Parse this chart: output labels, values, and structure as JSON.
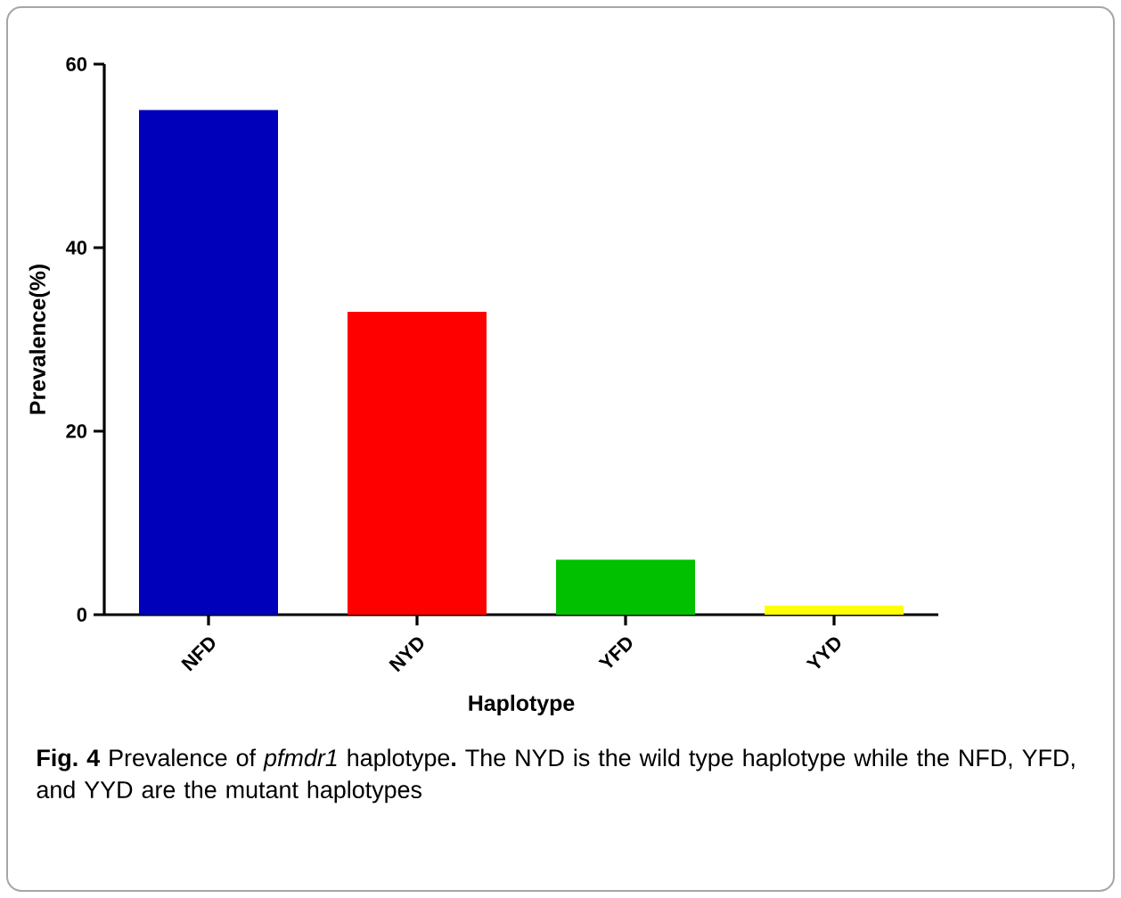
{
  "chart_data": {
    "type": "bar",
    "xlabel": "Haplotype",
    "ylabel": "Prevalence(%)",
    "categories": [
      "NFD",
      "NYD",
      "YFD",
      "YYD"
    ],
    "values": [
      55,
      33,
      6,
      1
    ],
    "colors": [
      "#0000bb",
      "#ff0000",
      "#00c000",
      "#ffff00"
    ],
    "ylim": [
      0,
      60
    ],
    "yticks": [
      0,
      20,
      40,
      60
    ],
    "grid": false,
    "annotations": [
      "**Fig. 4** Prevalence of *pfmdr1* haplotype**.** The NYD is the wild type haplotype while the NFD, YFD, and YYD are the mutant haplotypes"
    ]
  }
}
